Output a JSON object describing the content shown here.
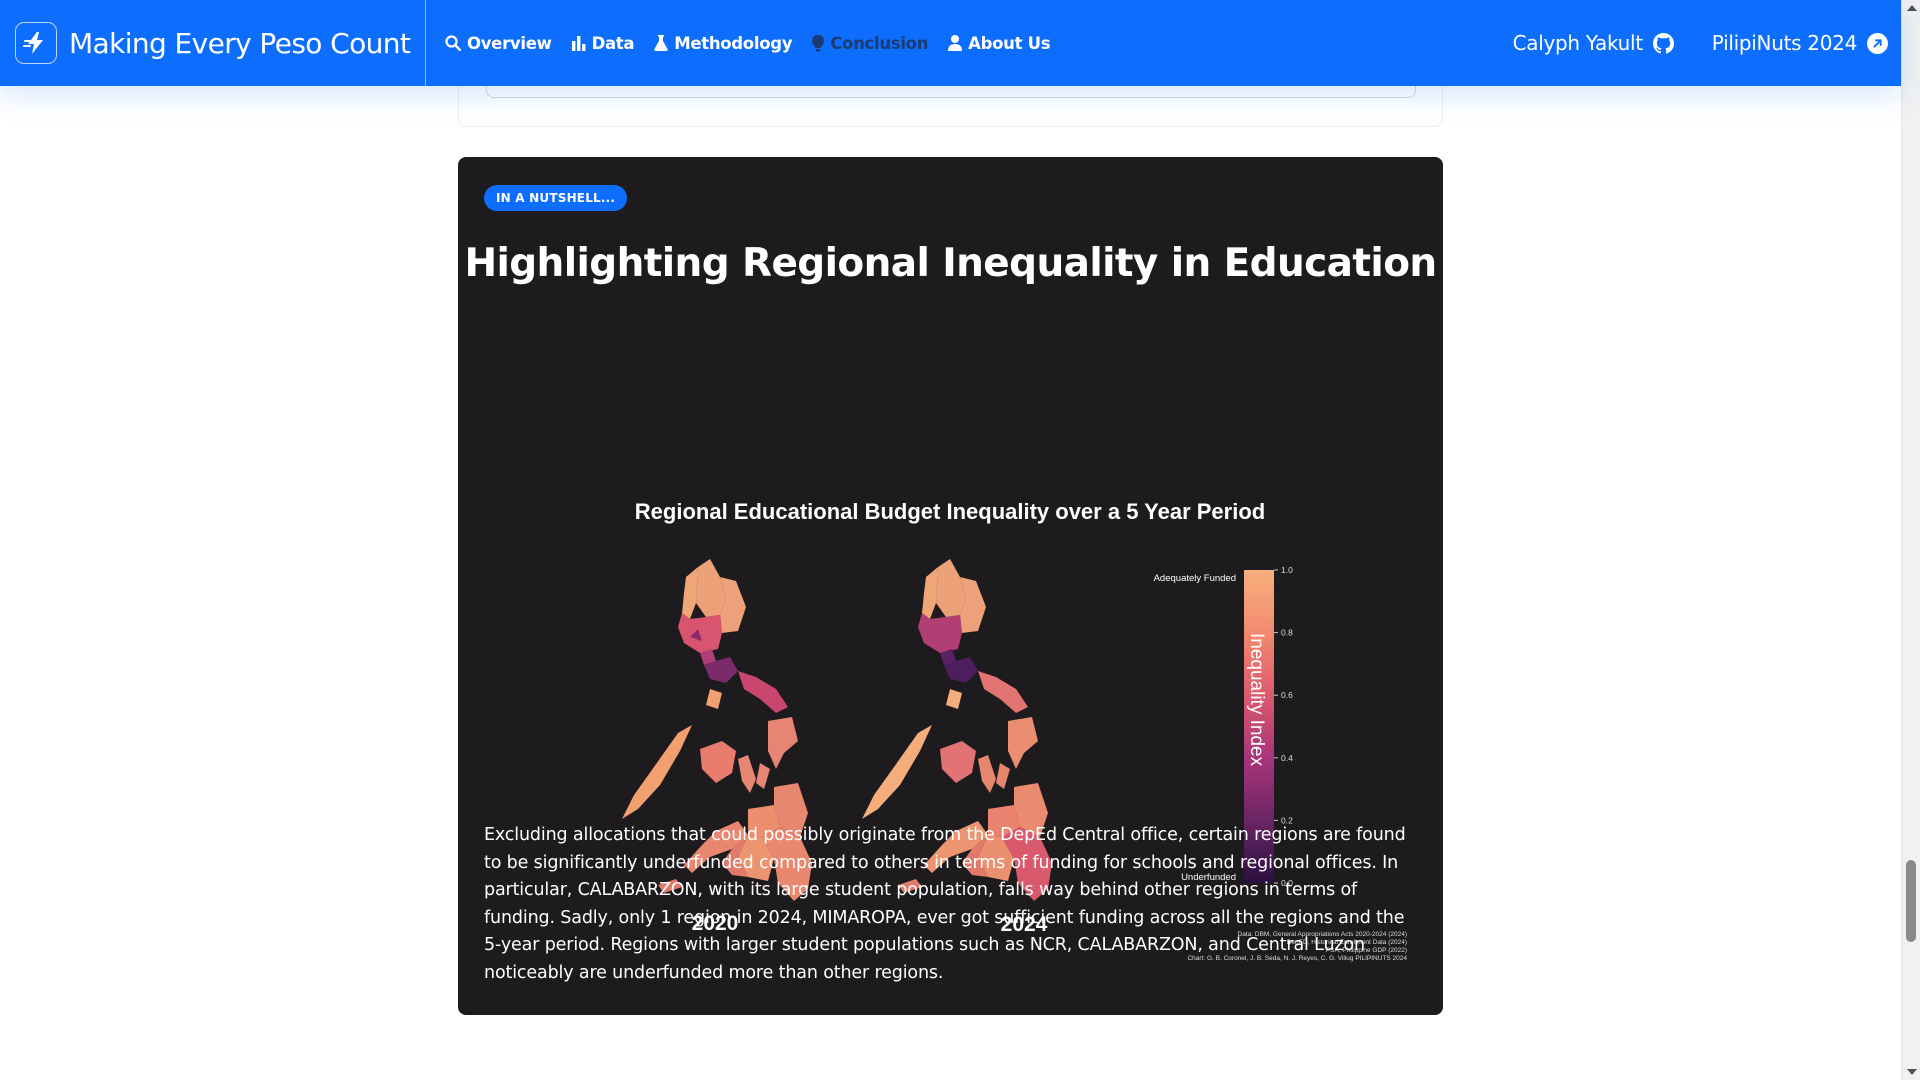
{
  "navbar": {
    "brand": "Making Every Peso Count",
    "links": [
      {
        "label": "Overview",
        "icon": "search-icon"
      },
      {
        "label": "Data",
        "icon": "bar-chart-icon"
      },
      {
        "label": "Methodology",
        "icon": "flask-icon"
      },
      {
        "label": "Conclusion",
        "icon": "lightbulb-icon",
        "active": true
      },
      {
        "label": "About Us",
        "icon": "user-icon"
      }
    ],
    "external": [
      {
        "label": "Calyph Yakult",
        "icon": "github-icon"
      },
      {
        "label": "PilipiNuts 2024",
        "icon": "external-link-icon"
      }
    ]
  },
  "card": {
    "badge": "IN A NUTSHELL...",
    "title": "Highlighting Regional Inequality in Education",
    "paragraph": "Excluding allocations that could possibly originate from the DepEd Central office, certain regions are found to be significantly underfunded compared to others in terms of funding for schools and regional offices. In particular, CALABARZON, with its large student population, falls way behind other regions in terms of funding. Sadly, only 1 region in 2024, MIMAROPA, ever got sufficient funding across all the regions and the 5-year period. Regions with larger student populations such as NCR, CALABARZON, and Central Luzon noticeably are underfunded more than other regions."
  },
  "chart_data": {
    "type": "heatmap",
    "title": "Regional Educational Budget Inequality over a 5 Year Period",
    "panels": [
      "2020",
      "2024"
    ],
    "colorbar": {
      "label": "Inequality Index",
      "range": [
        0.0,
        1.0
      ],
      "ticks": [
        "1.0",
        "0.8",
        "0.6",
        "0.4",
        "0.2",
        "0.0"
      ],
      "top_label": "Adequately Funded",
      "bottom_label": "Underfunded",
      "colors": [
        "#2b1040",
        "#6b2565",
        "#a8357a",
        "#dc5a6e",
        "#f28a6e",
        "#f7b07d"
      ]
    },
    "credits": [
      "Data: DBM, General Appropriations Acts 2020-2024 (2024)",
      "DepED, Historical Enrollment Data (2024)",
      "PSA, Philippine GDP (2022)",
      "Chart: G. B. Coronel, J. B. Seda, N. J. Reyes, C. G. Villug PILIPINUTS 2024"
    ]
  },
  "colors": {
    "navbar": "#0d6efd",
    "card_bg": "#1e1b1e",
    "active_link": "#1b3b75"
  }
}
